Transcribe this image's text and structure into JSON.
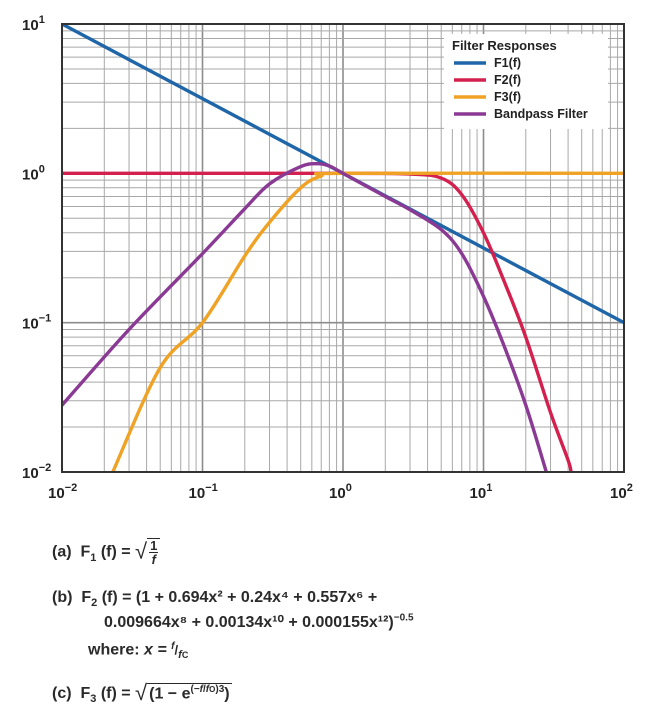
{
  "chart_data": {
    "type": "line",
    "title": "",
    "xlabel": "",
    "ylabel": "",
    "xscale": "log",
    "yscale": "log",
    "xlim": [
      0.01,
      100
    ],
    "ylim": [
      0.01,
      10
    ],
    "grid": true,
    "x_ticks": [
      {
        "mantissa": "10",
        "exp": "−2"
      },
      {
        "mantissa": "10",
        "exp": "−1"
      },
      {
        "mantissa": "10",
        "exp": "0"
      },
      {
        "mantissa": "10",
        "exp": "1"
      },
      {
        "mantissa": "10",
        "exp": "2"
      }
    ],
    "y_ticks": [
      {
        "mantissa": "10",
        "exp": "1",
        "value": 10
      },
      {
        "mantissa": "10",
        "exp": "0",
        "value": 1
      },
      {
        "mantissa": "10",
        "exp": "−1",
        "value": 0.1
      },
      {
        "mantissa": "10",
        "exp": "−2",
        "value": 0.01
      }
    ],
    "legend": {
      "title": "Filter Responses",
      "position": "top-right"
    },
    "series": [
      {
        "name": "F1(f)",
        "color": "#1f66a8",
        "x": [
          0.01,
          0.1,
          1,
          10,
          100
        ],
        "y": [
          10,
          3.162,
          1,
          0.316,
          0.1
        ]
      },
      {
        "name": "F2(f)",
        "color": "#d4204e",
        "x": [
          0.01,
          1,
          3,
          5,
          7,
          10,
          14,
          20,
          30,
          40,
          42
        ],
        "y": [
          1,
          1,
          0.99,
          0.93,
          0.72,
          0.4,
          0.19,
          0.08,
          0.025,
          0.012,
          0.01
        ]
      },
      {
        "name": "F3(f)",
        "color": "#efa223",
        "x": [
          0.023,
          0.05,
          0.1,
          0.2,
          0.3,
          0.5,
          0.7,
          1,
          100
        ],
        "y": [
          0.01,
          0.05,
          0.1,
          0.28,
          0.47,
          0.8,
          0.96,
          1,
          1
        ]
      },
      {
        "name": "Bandpass Filter",
        "color": "#8a3a94",
        "x": [
          0.01,
          0.03,
          0.1,
          0.2,
          0.3,
          0.5,
          0.65,
          0.8,
          1,
          2,
          3,
          5,
          7,
          10,
          14,
          20,
          28
        ],
        "y": [
          0.028,
          0.09,
          0.29,
          0.58,
          0.85,
          1.11,
          1.16,
          1.12,
          1.0,
          0.7,
          0.57,
          0.42,
          0.29,
          0.15,
          0.07,
          0.028,
          0.01
        ]
      }
    ]
  },
  "equations": {
    "a": {
      "tag": "(a)",
      "lhs": "F",
      "sub": "1",
      "arg": "(f) =",
      "num": "1",
      "den": "f"
    },
    "b": {
      "tag": "(b)",
      "lhs": "F",
      "sub": "2",
      "arg": "(f) =",
      "line1": "(1 + 0.694x² + 0.24x⁴ + 0.557x⁶ +",
      "line2": "0.009664x⁸ + 0.00134x¹⁰ + 0.000155x¹²)",
      "exp": "−0.5"
    },
    "where": {
      "label": "where:",
      "expr": "x =",
      "num": "f",
      "den": "f",
      "den_sub": "C"
    },
    "c": {
      "tag": "(c)",
      "lhs": "F",
      "sub": "3",
      "arg": "(f) =",
      "body": "(1 − e",
      "exp_open": "(−",
      "exp_num": "f",
      "exp_den": "f",
      "exp_den_sub": "O",
      "exp_close": ")",
      "cube": "3",
      "close": ")"
    }
  }
}
